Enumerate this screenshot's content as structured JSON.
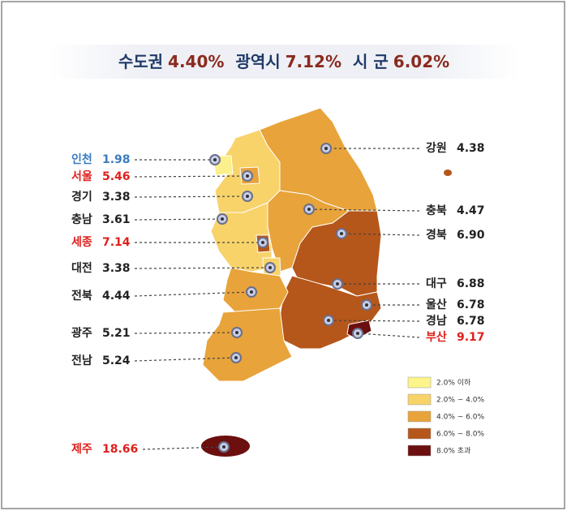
{
  "header": {
    "items": [
      {
        "label": "수도권",
        "value": "4.40%"
      },
      {
        "label": "광역시",
        "value": "7.12%"
      },
      {
        "label": "시 군",
        "value": "6.02%"
      }
    ]
  },
  "regions": [
    {
      "name": "인천",
      "value": "1.98"
    },
    {
      "name": "서울",
      "value": "5.46"
    },
    {
      "name": "경기",
      "value": "3.38"
    },
    {
      "name": "충남",
      "value": "3.61"
    },
    {
      "name": "세종",
      "value": "7.14"
    },
    {
      "name": "대전",
      "value": "3.38"
    },
    {
      "name": "전북",
      "value": "4.44"
    },
    {
      "name": "광주",
      "value": "5.21"
    },
    {
      "name": "전남",
      "value": "5.24"
    },
    {
      "name": "제주",
      "value": "18.66"
    },
    {
      "name": "강원",
      "value": "4.38"
    },
    {
      "name": "충북",
      "value": "4.47"
    },
    {
      "name": "경북",
      "value": "6.90"
    },
    {
      "name": "대구",
      "value": "6.88"
    },
    {
      "name": "울산",
      "value": "6.78"
    },
    {
      "name": "경남",
      "value": "6.78"
    },
    {
      "name": "부산",
      "value": "9.17"
    }
  ],
  "legend": [
    "2.0% 이하",
    "2.0% ~ 4.0%",
    "4.0% ~ 6.0%",
    "6.0% ~ 8.0%",
    "8.0% 초과"
  ]
}
